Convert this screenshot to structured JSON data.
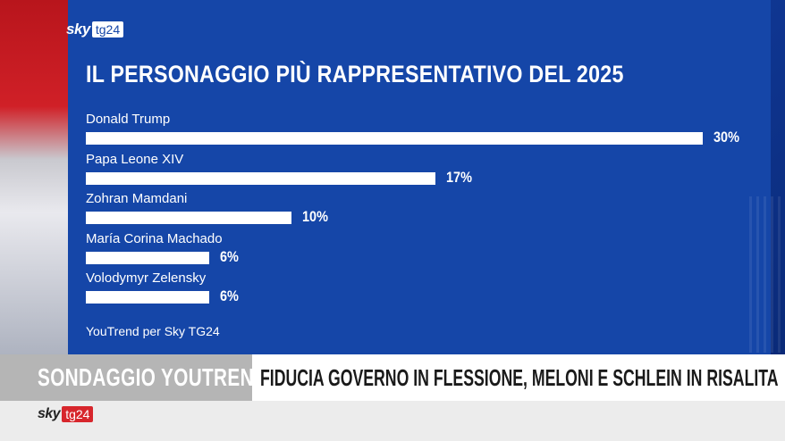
{
  "logo": {
    "sky": "sky",
    "tg": "tg24"
  },
  "chart_data": {
    "type": "bar",
    "title": "IL PERSONAGGIO PIÙ RAPPRESENTATIVO DEL 2025",
    "categories": [
      "Donald Trump",
      "Papa Leone XIV",
      "Zohran Mamdani",
      "María Corina Machado",
      "Volodymyr Zelensky"
    ],
    "values": [
      30,
      17,
      10,
      6,
      6
    ],
    "value_labels": [
      "30%",
      "17%",
      "10%",
      "6%",
      "6%"
    ],
    "xlim": [
      0,
      30
    ],
    "source": "YouTrend per Sky TG24"
  },
  "banner": {
    "left": "SONDAGGIO YOUTREND",
    "right": "FIDUCIA GOVERNO IN FLESSIONE, MELONI E SCHLEIN IN RISALITA"
  },
  "colors": {
    "panel": "#1546a8",
    "bar": "#ffffff",
    "tg24_red": "#d7262c"
  }
}
